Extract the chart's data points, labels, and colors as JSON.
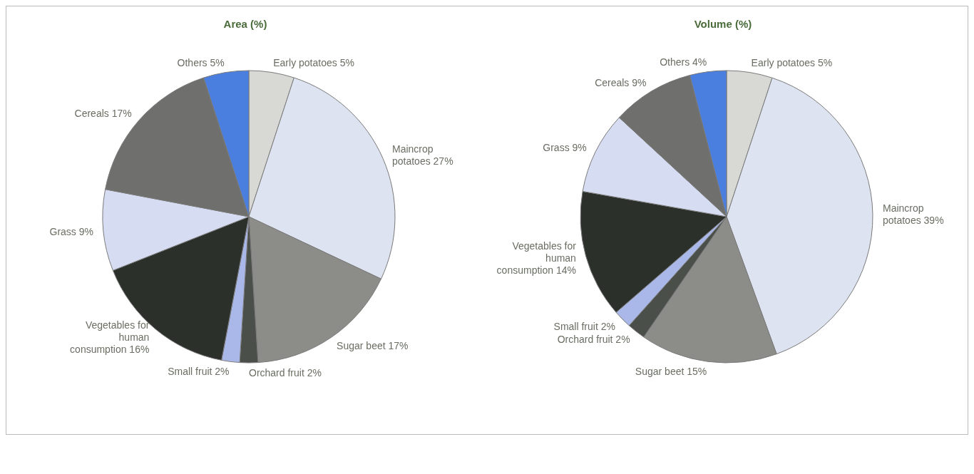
{
  "chart_data": [
    {
      "type": "pie",
      "title": "Area (%)",
      "categories": [
        "Early potatoes",
        "Maincrop potatoes",
        "Sugar beet",
        "Orchard fruit",
        "Small fruit",
        "Vegetables for human consumption",
        "Grass",
        "Cereals",
        "Others"
      ],
      "values": [
        5,
        27,
        17,
        2,
        2,
        16,
        9,
        17,
        5
      ],
      "value_labels": [
        "5%",
        "27%",
        "17%",
        "2%",
        "2%",
        "16%",
        "9%",
        "17%",
        "5%"
      ],
      "colors": [
        "#d8d8d4",
        "#dde3f0",
        "#8c8c88",
        "#4a4f4a",
        "#a9b8e8",
        "#2b302b",
        "#d6ddf2",
        "#6f706d",
        "#4a7fe0"
      ]
    },
    {
      "type": "pie",
      "title": "Volume (%)",
      "categories": [
        "Early potatoes",
        "Maincrop potatoes",
        "Sugar beet",
        "Orchard fruit",
        "Small fruit",
        "Vegetables for human consumption",
        "Grass",
        "Cereals",
        "Others"
      ],
      "values": [
        5,
        39,
        15,
        2,
        2,
        14,
        9,
        9,
        4
      ],
      "value_labels": [
        "5%",
        "39%",
        "15%",
        "2%",
        "2%",
        "14%",
        "9%",
        "9%",
        "4%"
      ],
      "colors": [
        "#d8d8d4",
        "#dde3f0",
        "#8c8c88",
        "#4a4f4a",
        "#a9b8e8",
        "#2b302b",
        "#d6ddf2",
        "#6f706d",
        "#4a7fe0"
      ]
    }
  ]
}
